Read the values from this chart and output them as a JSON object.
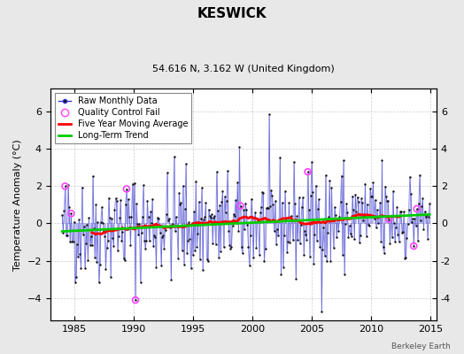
{
  "title": "KESWICK",
  "subtitle": "54.616 N, 3.162 W (United Kingdom)",
  "ylabel": "Temperature Anomaly (°C)",
  "attribution": "Berkeley Earth",
  "xlim": [
    1983.0,
    2015.5
  ],
  "ylim": [
    -5.2,
    7.2
  ],
  "yticks": [
    -4,
    -2,
    0,
    2,
    4,
    6
  ],
  "xticks": [
    1985,
    1990,
    1995,
    2000,
    2005,
    2010,
    2015
  ],
  "bg_color": "#e8e8e8",
  "plot_bg_color": "#ffffff",
  "grid_color": "#cccccc",
  "line_color": "#3333cc",
  "line_alpha": 0.55,
  "marker_color": "#111111",
  "qc_color": "#ff44ff",
  "moving_avg_color": "#ff0000",
  "trend_color": "#00cc00",
  "seed": 42,
  "years_start": 1984,
  "years_end": 2014,
  "noise_std": 1.5,
  "trend_slope": 0.02,
  "trend_intercept": -0.3,
  "qc_fail_indices": [
    3,
    9,
    65,
    74,
    180,
    248,
    330,
    355,
    358
  ],
  "moving_avg_window": 61
}
